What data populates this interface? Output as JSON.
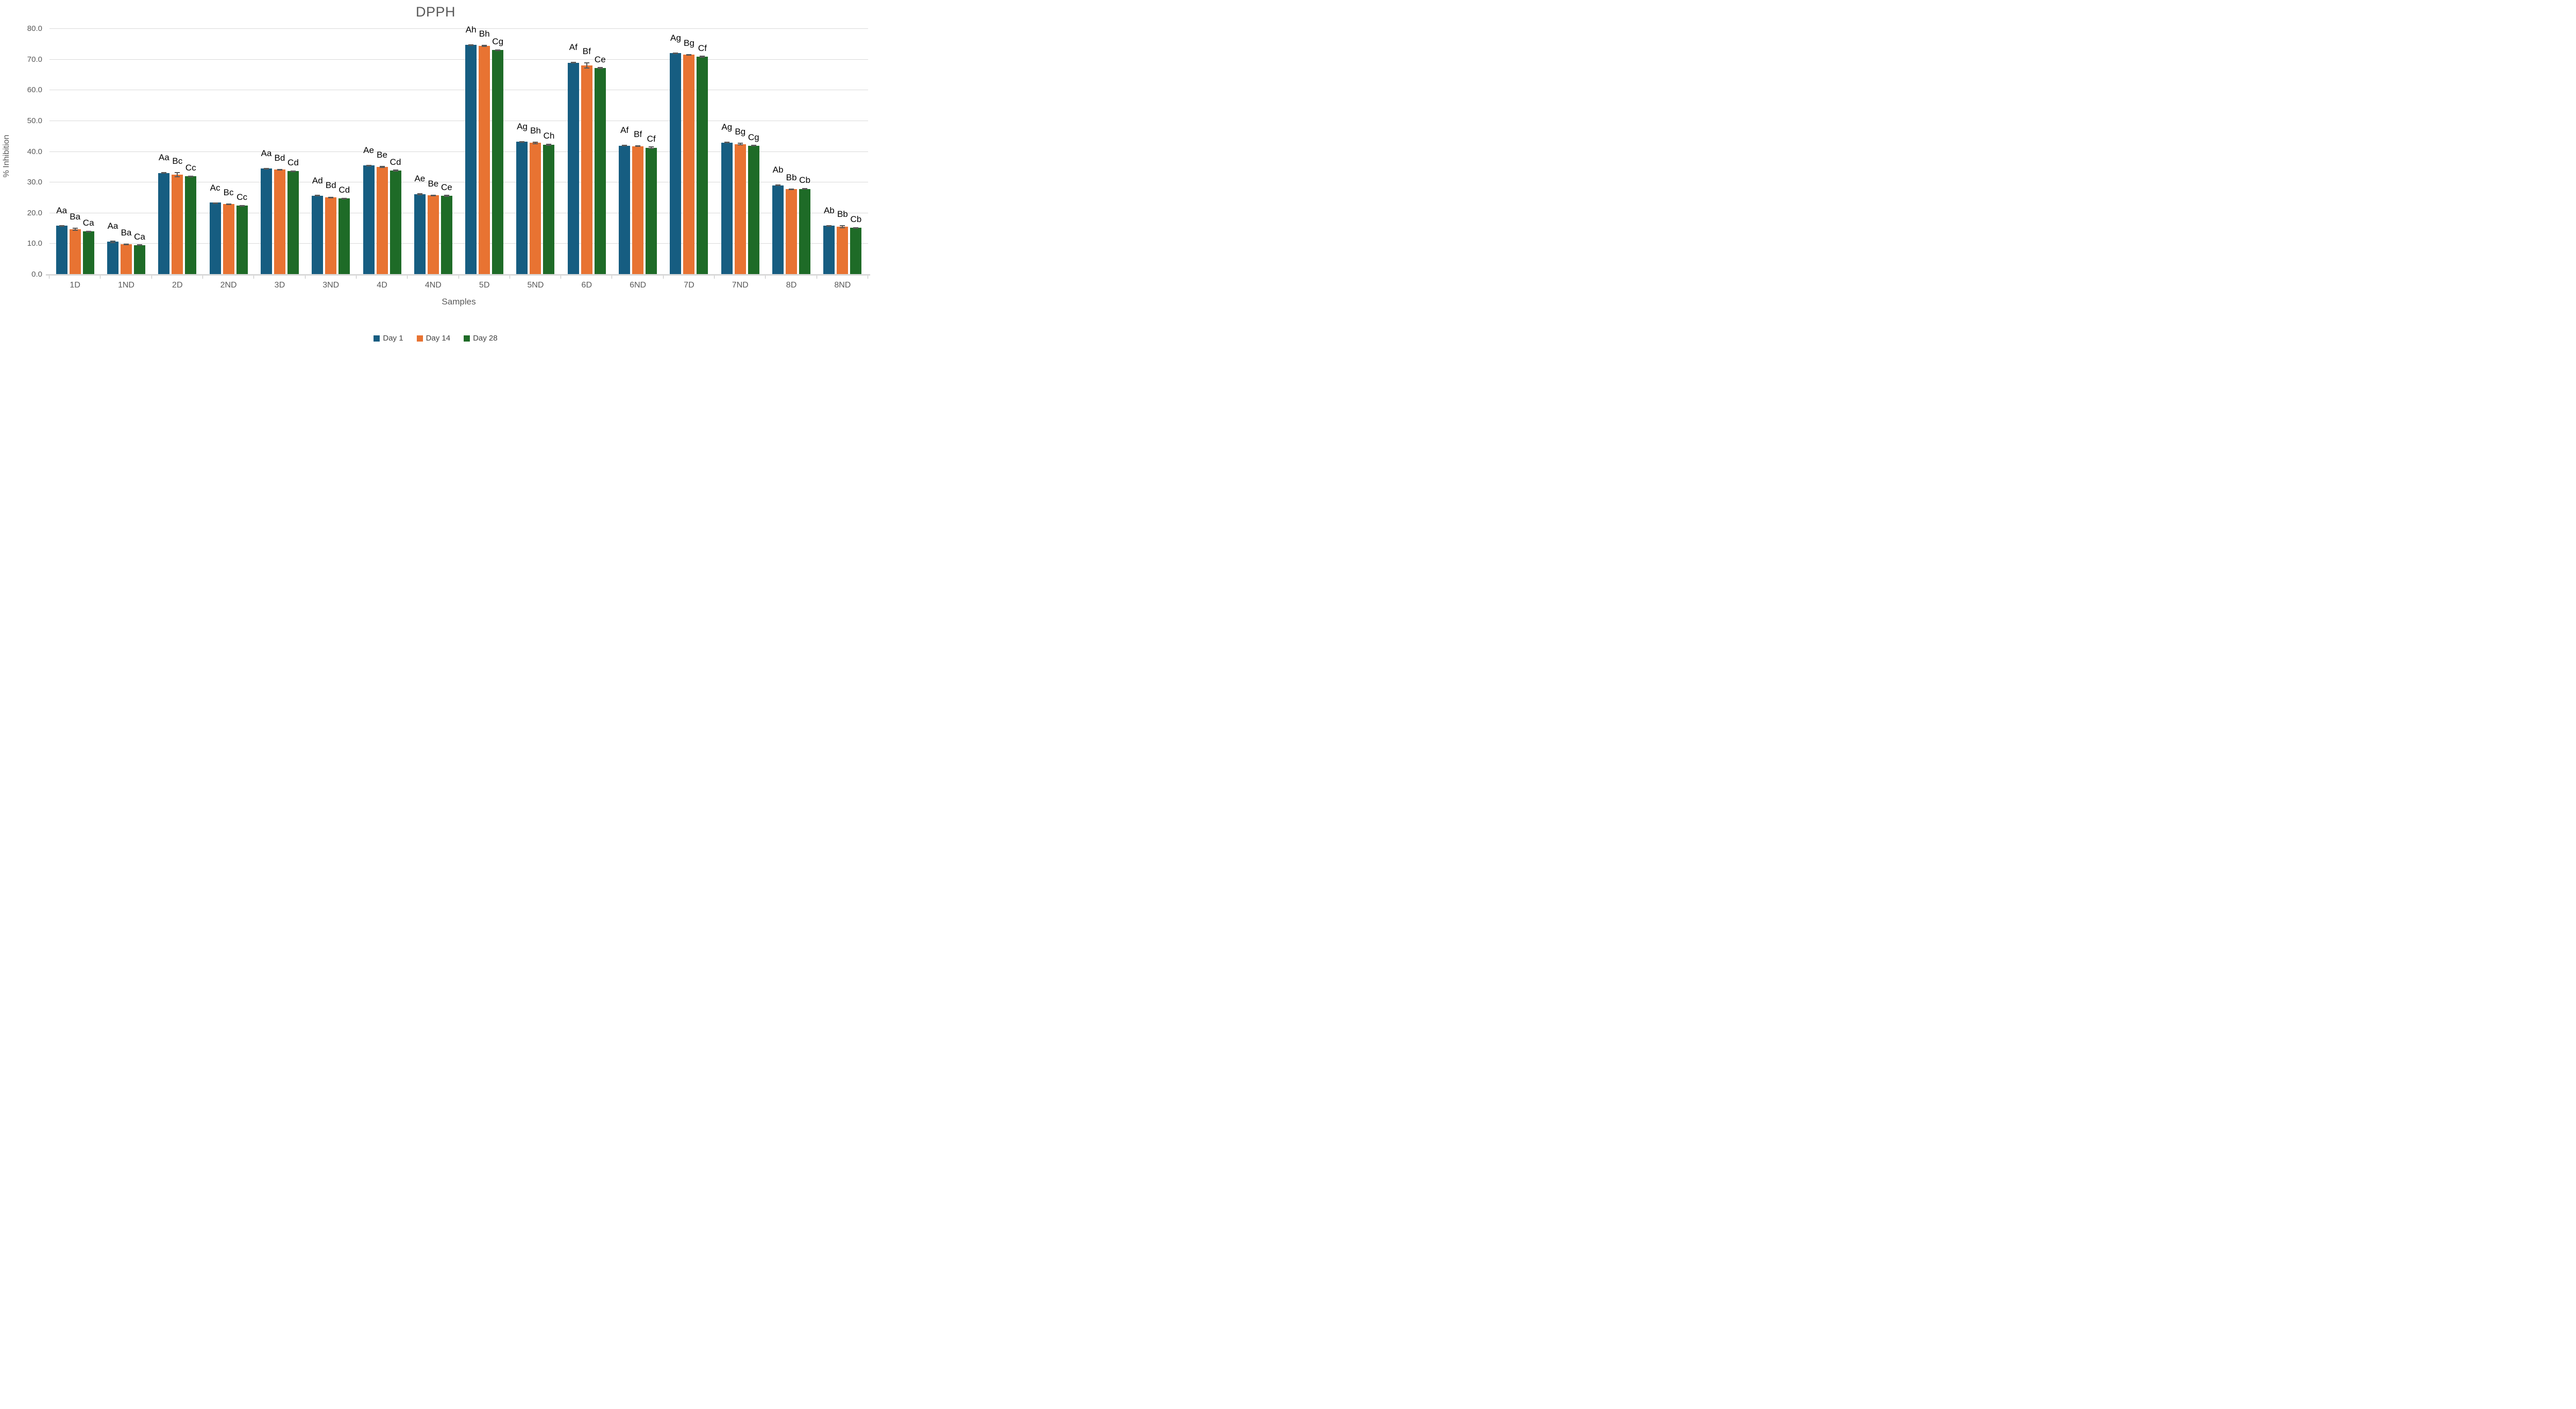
{
  "chart_data": {
    "type": "bar",
    "title": "DPPH",
    "xlabel": "Samples",
    "ylabel": "% Inhibition",
    "ylim": [
      0,
      80
    ],
    "ytick_step": 10,
    "yticks": [
      "0.0",
      "10.0",
      "20.0",
      "30.0",
      "40.0",
      "50.0",
      "60.0",
      "70.0",
      "80.0"
    ],
    "grid": "horizontal",
    "legend_position": "bottom-center",
    "categories": [
      "1D",
      "1ND",
      "2D",
      "2ND",
      "3D",
      "3ND",
      "4D",
      "4ND",
      "5D",
      "5ND",
      "6D",
      "6ND",
      "7D",
      "7ND",
      "8D",
      "8ND"
    ],
    "series": [
      {
        "name": "Day 1",
        "color": "#165D81",
        "values": [
          15.9,
          10.7,
          33.1,
          23.4,
          34.5,
          25.7,
          35.5,
          26.2,
          74.8,
          43.2,
          69.0,
          42.0,
          72.1,
          43.0,
          29.1,
          15.9
        ],
        "errors": [
          0.2,
          0.4,
          0.3,
          0.15,
          0.2,
          0.25,
          0.2,
          0.3,
          0.2,
          0.25,
          0.25,
          0.3,
          0.2,
          0.25,
          0.3,
          0.2
        ],
        "labels": [
          "Aa",
          "Aa",
          "Aa",
          "Ac",
          "Aa",
          "Ad",
          "Ae",
          "Ae",
          "Ah",
          "Ag",
          "Af",
          "Af",
          "Ag",
          "Ag",
          "Ab",
          "Ab"
        ]
      },
      {
        "name": "Day 14",
        "color": "#E87332",
        "values": [
          14.8,
          9.9,
          32.5,
          23.0,
          34.2,
          25.1,
          35.0,
          25.8,
          74.5,
          42.9,
          68.1,
          41.8,
          71.6,
          42.5,
          27.8,
          15.6
        ],
        "errors": [
          0.5,
          0.2,
          0.8,
          0.2,
          0.25,
          0.3,
          0.35,
          0.2,
          0.3,
          0.4,
          1.0,
          0.25,
          0.25,
          0.4,
          0.25,
          0.5
        ],
        "labels": [
          "Ba",
          "Ba",
          "Bc",
          "Bc",
          "Bd",
          "Bd",
          "Be",
          "Be",
          "Bh",
          "Bh",
          "Bf",
          "Bf",
          "Bg",
          "Bg",
          "Bb",
          "Bb"
        ]
      },
      {
        "name": "Day 28",
        "color": "#1E6B27",
        "values": [
          14.1,
          9.6,
          32.0,
          22.4,
          33.7,
          24.8,
          33.9,
          25.6,
          73.1,
          42.3,
          67.2,
          41.3,
          70.9,
          42.0,
          27.9,
          15.2
        ],
        "errors": [
          0.2,
          0.25,
          0.2,
          0.25,
          0.25,
          0.2,
          0.3,
          0.35,
          0.25,
          0.3,
          0.35,
          0.4,
          0.3,
          0.25,
          0.3,
          0.3
        ],
        "labels": [
          "Ca",
          "Ca",
          "Cc",
          "Cc",
          "Cd",
          "Cd",
          "Cd",
          "Ce",
          "Cg",
          "Ch",
          "Ce",
          "Cf",
          "Cf",
          "Cg",
          "Cb",
          "Cb"
        ]
      }
    ],
    "label_offsets_units": [
      3.3,
      2.2,
      1.1
    ],
    "colors": {
      "gridline": "#D9D9D9",
      "baseline": "#D9D9D9",
      "boundary_tick": "#BFBFBF",
      "axis_text": "#595959",
      "title_text": "#595959",
      "legend_text": "#404040",
      "annotation_text": "#000000",
      "error_bar": "#595959",
      "background": "#FFFFFF"
    }
  }
}
